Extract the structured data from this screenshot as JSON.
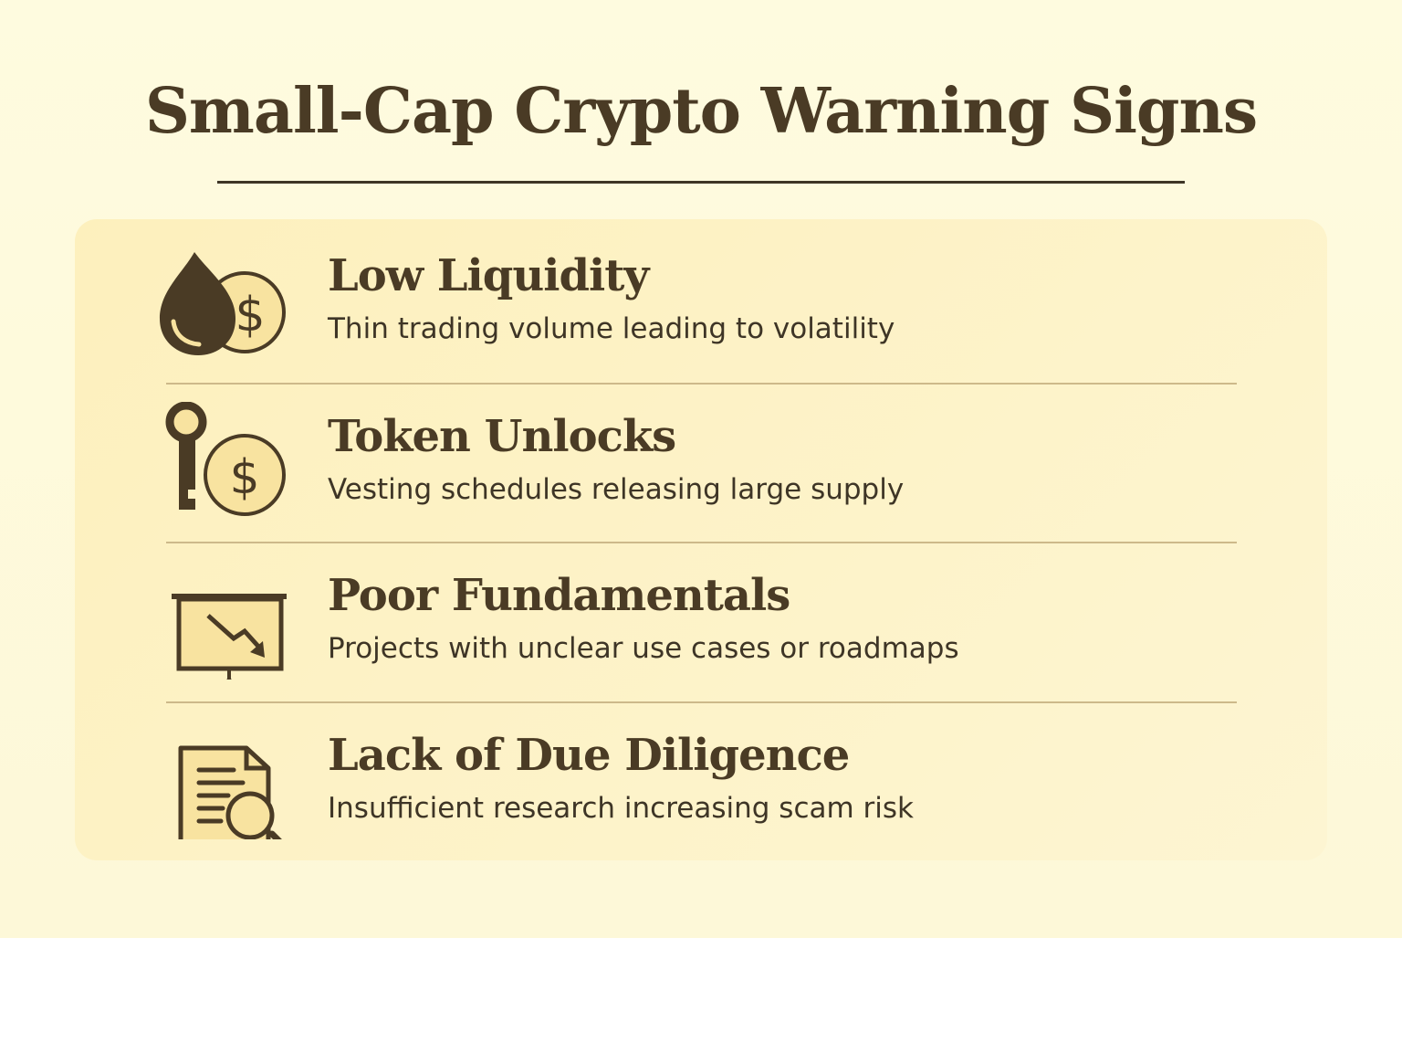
{
  "title": "Small-Cap Crypto Warning Signs",
  "colors": {
    "text": "#4a3b25",
    "panel": "#fdf0bd",
    "icon_fill": "#f8e3a0",
    "divider": "#cdb98a"
  },
  "items": [
    {
      "title": "Low Liquidity",
      "description": "Thin trading volume leading to volatility",
      "icon": "liquidity-drop-coin-icon"
    },
    {
      "title": "Token Unlocks",
      "description": "Vesting schedules releasing large supply",
      "icon": "key-coin-icon"
    },
    {
      "title": "Poor Fundamentals",
      "description": "Projects with unclear use cases or roadmaps",
      "icon": "declining-chart-board-icon"
    },
    {
      "title": "Lack of Due Diligence",
      "description": "Insufficient research increasing scam risk",
      "icon": "document-search-icon"
    }
  ]
}
